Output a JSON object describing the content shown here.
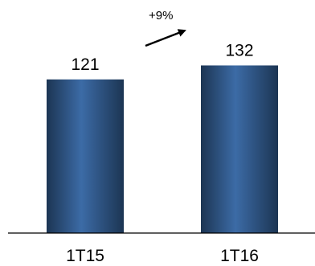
{
  "chart_data": {
    "type": "bar",
    "categories": [
      "1T15",
      "1T16"
    ],
    "values": [
      121,
      132
    ],
    "data_labels": [
      "121",
      "132"
    ],
    "annotation": "+9%",
    "ylim": [
      0,
      170
    ],
    "grid": false,
    "legend": "none",
    "colors": {
      "bar_dark": "#1c3553",
      "bar_light": "#3c6ba6",
      "axis": "#000000"
    }
  }
}
